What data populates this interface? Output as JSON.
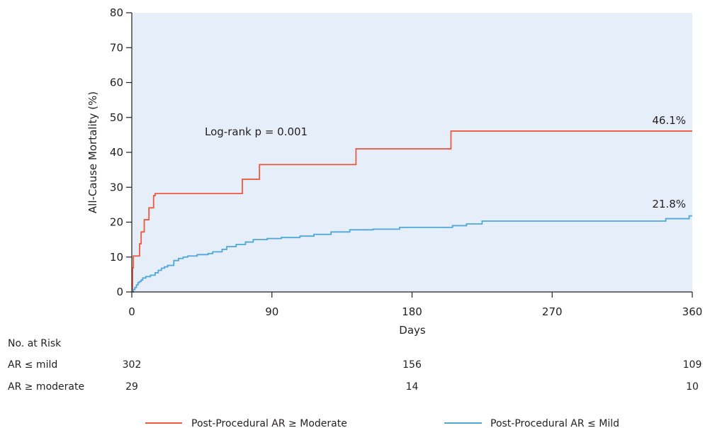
{
  "chart_data": {
    "type": "line",
    "title": "",
    "xlabel": "Days",
    "ylabel": "All-Cause Mortality (%)",
    "xlim": [
      0,
      360
    ],
    "ylim": [
      0,
      80
    ],
    "x_ticks": [
      "0",
      "90",
      "180",
      "270",
      "360"
    ],
    "y_ticks": [
      "0",
      "10",
      "20",
      "30",
      "40",
      "50",
      "60",
      "70",
      "80"
    ],
    "grid": false,
    "plot_background": "#e6eef9",
    "annotation": "Log-rank p = 0.001",
    "series": [
      {
        "name": "Post-Procedural AR ≥ Moderate",
        "color": "#ed5a3c",
        "end_label": "46.1%",
        "steps": [
          [
            0,
            0
          ],
          [
            0.5,
            6.9
          ],
          [
            1,
            10.3
          ],
          [
            5,
            13.8
          ],
          [
            6,
            17.2
          ],
          [
            8,
            20.7
          ],
          [
            11,
            24.1
          ],
          [
            14,
            27.6
          ],
          [
            15,
            28.2
          ],
          [
            71,
            28.2
          ],
          [
            71,
            32.3
          ],
          [
            82,
            32.3
          ],
          [
            82,
            36.5
          ],
          [
            144,
            36.5
          ],
          [
            144,
            41.0
          ],
          [
            205,
            41.0
          ],
          [
            205,
            46.1
          ],
          [
            360,
            46.1
          ]
        ]
      },
      {
        "name": "Post-Procedural AR ≤ Mild",
        "color": "#4fa8d8",
        "end_label": "21.8%",
        "steps": [
          [
            0,
            0
          ],
          [
            1,
            0.7
          ],
          [
            2,
            1.3
          ],
          [
            3,
            2.0
          ],
          [
            4,
            2.7
          ],
          [
            5,
            3.0
          ],
          [
            6,
            3.4
          ],
          [
            7,
            4.0
          ],
          [
            9,
            4.4
          ],
          [
            12,
            4.8
          ],
          [
            15,
            5.5
          ],
          [
            17,
            6.2
          ],
          [
            19,
            6.8
          ],
          [
            21,
            7.2
          ],
          [
            23,
            7.6
          ],
          [
            27,
            9.0
          ],
          [
            30,
            9.6
          ],
          [
            33,
            10.0
          ],
          [
            36,
            10.3
          ],
          [
            42,
            10.7
          ],
          [
            49,
            11.0
          ],
          [
            52,
            11.5
          ],
          [
            58,
            12.2
          ],
          [
            61,
            13.0
          ],
          [
            67,
            13.6
          ],
          [
            73,
            14.3
          ],
          [
            78,
            15.0
          ],
          [
            87,
            15.3
          ],
          [
            96,
            15.6
          ],
          [
            108,
            16.0
          ],
          [
            117,
            16.5
          ],
          [
            128,
            17.2
          ],
          [
            140,
            17.8
          ],
          [
            155,
            18.0
          ],
          [
            172,
            18.5
          ],
          [
            195,
            18.5
          ],
          [
            206,
            19.0
          ],
          [
            215,
            19.5
          ],
          [
            225,
            20.3
          ],
          [
            258,
            20.3
          ],
          [
            343,
            20.3
          ],
          [
            343,
            21.0
          ],
          [
            358,
            21.0
          ],
          [
            358,
            21.8
          ],
          [
            360,
            21.8
          ]
        ]
      }
    ],
    "risk_table": {
      "title": "No. at Risk",
      "rows": [
        {
          "label": "AR ≤ mild",
          "values": [
            "302",
            "156",
            "109"
          ]
        },
        {
          "label": "AR ≥ moderate",
          "values": [
            "29",
            "14",
            "10"
          ]
        }
      ],
      "days": [
        0,
        180,
        360
      ]
    }
  }
}
